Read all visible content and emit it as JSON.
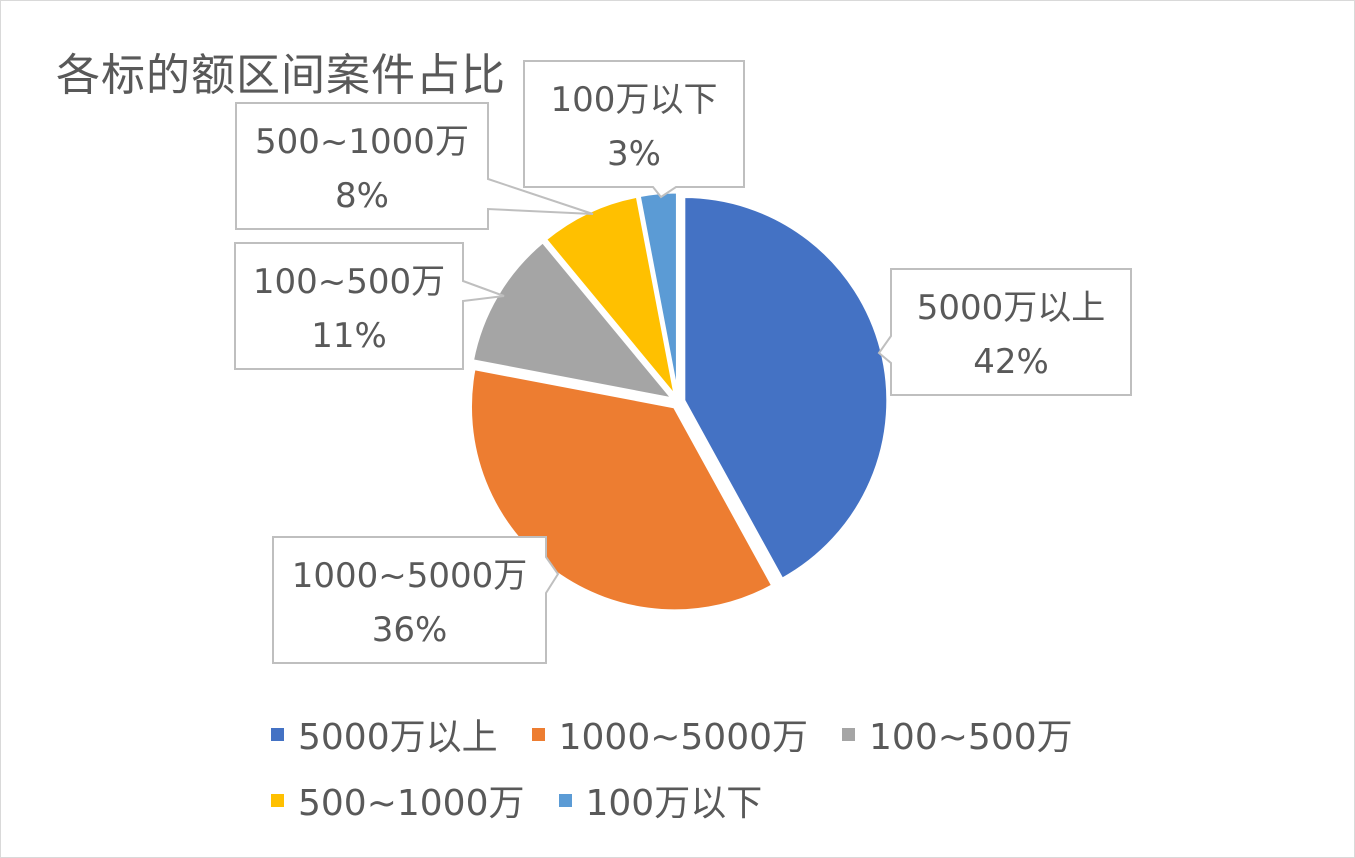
{
  "chart_data": {
    "type": "pie",
    "title": "各标的额区间案件占比",
    "slices": [
      {
        "label": "5000万以上",
        "value": 42,
        "percent_label": "42%",
        "color": "#4472C4"
      },
      {
        "label": "1000~5000万",
        "value": 36,
        "percent_label": "36%",
        "color": "#ED7D31"
      },
      {
        "label": "100~500万",
        "value": 11,
        "percent_label": "11%",
        "color": "#A5A5A5"
      },
      {
        "label": "500~1000万",
        "value": 8,
        "percent_label": "8%",
        "color": "#FFC000"
      },
      {
        "label": "100万以下",
        "value": 3,
        "percent_label": "3%",
        "color": "#5B9BD5"
      }
    ],
    "legend": {
      "placement": "bottom",
      "rows": [
        [
          "5000万以上",
          "1000~5000万",
          "100~500万"
        ],
        [
          "500~1000万",
          "100万以下"
        ]
      ]
    }
  }
}
